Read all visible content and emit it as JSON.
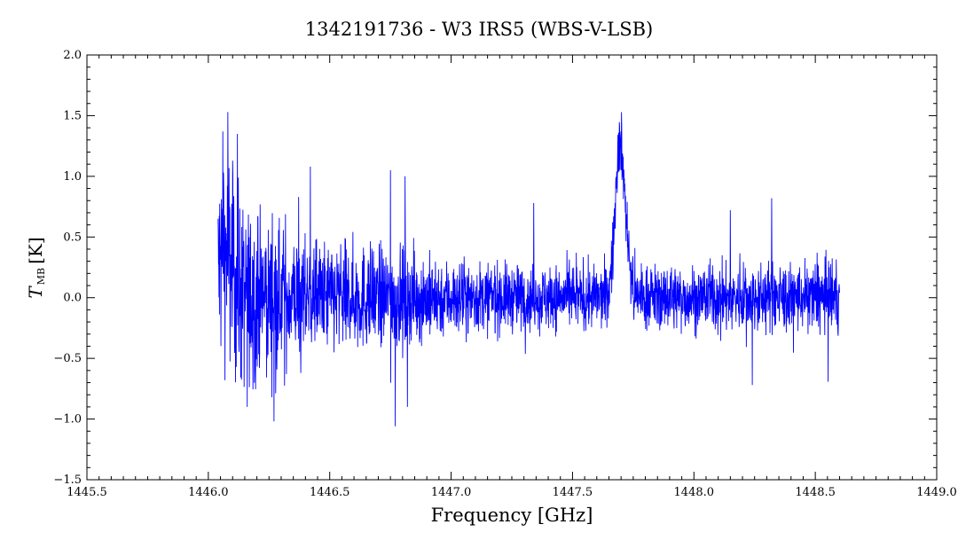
{
  "chart_data": {
    "type": "line",
    "title": "1342191736 - W3 IRS5 (WBS-V-LSB)",
    "xlabel": "Frequency [GHz]",
    "ylabel": {
      "symbol": "T",
      "subscript": "MB",
      "unit": "[K]"
    },
    "xlim": [
      1445.5,
      1449.0
    ],
    "ylim": [
      -1.5,
      2.0
    ],
    "xticks": [
      "1445.5",
      "1446.0",
      "1446.5",
      "1447.0",
      "1447.5",
      "1448.0",
      "1448.5",
      "1449.0"
    ],
    "yticks": [
      "-1.5",
      "-1.0",
      "-0.5",
      "0.0",
      "0.5",
      "1.0",
      "1.5",
      "2.0"
    ],
    "grid": false,
    "series_color": "#0000ff",
    "series": [
      {
        "x_start": 1446.04,
        "x_end": 1448.6,
        "noise_envelope": [
          [
            1446.04,
            1.3
          ],
          [
            1446.15,
            1.1
          ],
          [
            1446.25,
            0.85
          ],
          [
            1446.4,
            0.7
          ],
          [
            1446.6,
            0.65
          ],
          [
            1446.8,
            0.6
          ],
          [
            1447.0,
            0.45
          ],
          [
            1447.3,
            0.4
          ],
          [
            1447.6,
            0.38
          ],
          [
            1447.8,
            0.4
          ],
          [
            1448.1,
            0.4
          ],
          [
            1448.4,
            0.42
          ],
          [
            1448.6,
            0.45
          ]
        ],
        "features": [
          {
            "center": 1447.69,
            "peak": 0.9,
            "width": 0.018
          },
          {
            "center": 1447.71,
            "peak": 0.55,
            "width": 0.02
          },
          {
            "center": 1446.07,
            "peak": 0.35,
            "width": 0.03
          }
        ],
        "extremes": [
          {
            "x": 1446.08,
            "y": 1.53
          },
          {
            "x": 1446.06,
            "y": 1.37
          },
          {
            "x": 1446.12,
            "y": 1.35
          },
          {
            "x": 1446.16,
            "y": -0.9
          },
          {
            "x": 1446.27,
            "y": -1.02
          },
          {
            "x": 1446.77,
            "y": -1.06
          },
          {
            "x": 1446.82,
            "y": -0.9
          },
          {
            "x": 1446.42,
            "y": 1.08
          },
          {
            "x": 1446.75,
            "y": 1.05
          },
          {
            "x": 1446.81,
            "y": 1.0
          },
          {
            "x": 1447.69,
            "y": 1.36
          },
          {
            "x": 1447.34,
            "y": 0.78
          },
          {
            "x": 1448.24,
            "y": -0.72
          },
          {
            "x": 1448.15,
            "y": 0.72
          },
          {
            "x": 1448.32,
            "y": 0.82
          }
        ]
      }
    ]
  }
}
